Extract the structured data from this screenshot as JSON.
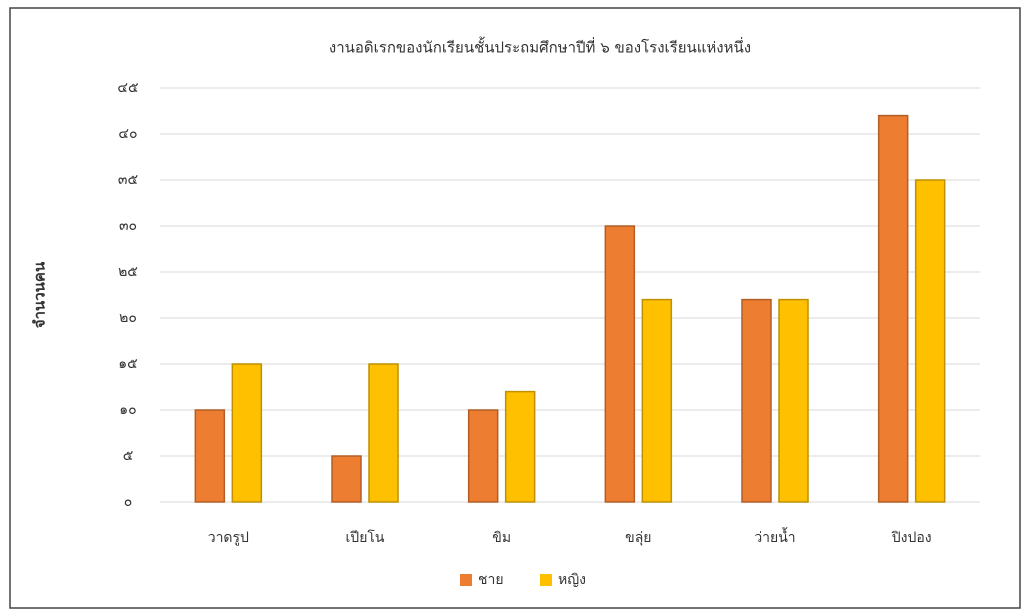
{
  "chart_data": {
    "type": "bar",
    "title": "งานอดิเรกของนักเรียนชั้นประถมศึกษาปีที่ ๖ ของโรงเรียนแห่งหนึ่ง",
    "y_label": "จำนวนคน",
    "categories": [
      "วาดรูป",
      "เปียโน",
      "ขิม",
      "ขลุ่ย",
      "ว่ายน้ำ",
      "ปิงปอง"
    ],
    "series": [
      {
        "name": "ชาย",
        "color": "#ed7d31",
        "values": [
          10,
          5,
          10,
          30,
          22,
          42
        ]
      },
      {
        "name": "หญิง",
        "color": "#ffc000",
        "values": [
          15,
          15,
          12,
          22,
          22,
          35
        ]
      }
    ],
    "ylim": [
      0,
      45
    ],
    "yticks": [
      {
        "value": 0,
        "label": "๐"
      },
      {
        "value": 5,
        "label": "๕"
      },
      {
        "value": 10,
        "label": "๑๐"
      },
      {
        "value": 15,
        "label": "๑๕"
      },
      {
        "value": 20,
        "label": "๒๐"
      },
      {
        "value": 25,
        "label": "๒๕"
      },
      {
        "value": 30,
        "label": "๓๐"
      },
      {
        "value": 35,
        "label": "๓๕"
      },
      {
        "value": 40,
        "label": "๔๐"
      },
      {
        "value": 45,
        "label": "๔๕"
      }
    ],
    "grid": true,
    "legend": "bottom"
  }
}
